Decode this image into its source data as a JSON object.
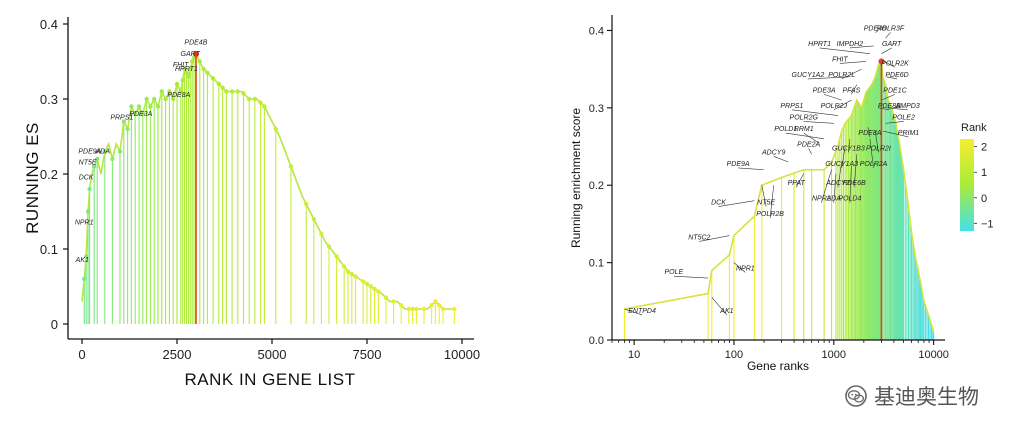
{
  "watermark": {
    "text": "基迪奥生物",
    "icon": "wechat-logo-icon"
  },
  "colors": {
    "low": "#44e0e8",
    "mid": "#a8ec3a",
    "high": "#f5ee2e",
    "highlight": "#e0441e"
  },
  "chart_data": [
    {
      "type": "line",
      "xlabel": "RANK IN GENE LIST",
      "ylabel": "RUNNING ES",
      "xlim": [
        0,
        10000
      ],
      "ylim": [
        -0.02,
        0.4
      ],
      "xticks": [
        "0",
        "2500",
        "5000",
        "7500",
        "10000"
      ],
      "yticks": [
        "0",
        "0.1",
        "0.2",
        "0.3",
        "0.4"
      ],
      "x": [
        0,
        60,
        110,
        160,
        200,
        260,
        320,
        400,
        500,
        600,
        700,
        800,
        900,
        1000,
        1100,
        1200,
        1300,
        1400,
        1500,
        1600,
        1700,
        1800,
        1900,
        2000,
        2100,
        2200,
        2300,
        2400,
        2500,
        2600,
        2700,
        2800,
        2900,
        3000,
        3200,
        3400,
        3600,
        3800,
        4000,
        4200,
        4400,
        4600,
        4800,
        5000,
        5200,
        5500,
        5800,
        6100,
        6400,
        6700,
        7000,
        7300,
        7600,
        7900,
        8100,
        8300,
        8500,
        8700,
        8900,
        9100,
        9300,
        9500,
        9800
      ],
      "y": [
        0.03,
        0.06,
        0.09,
        0.15,
        0.18,
        0.2,
        0.21,
        0.22,
        0.2,
        0.23,
        0.24,
        0.22,
        0.24,
        0.23,
        0.27,
        0.26,
        0.29,
        0.28,
        0.29,
        0.28,
        0.3,
        0.29,
        0.3,
        0.29,
        0.31,
        0.3,
        0.31,
        0.3,
        0.32,
        0.31,
        0.34,
        0.33,
        0.35,
        0.36,
        0.34,
        0.33,
        0.32,
        0.31,
        0.31,
        0.31,
        0.3,
        0.3,
        0.29,
        0.27,
        0.25,
        0.21,
        0.17,
        0.14,
        0.11,
        0.09,
        0.07,
        0.06,
        0.05,
        0.04,
        0.03,
        0.03,
        0.02,
        0.02,
        0.02,
        0.02,
        0.03,
        0.02,
        0.02
      ],
      "peak": {
        "x": 3000,
        "y": 0.36
      },
      "hit_x": [
        60,
        110,
        160,
        200,
        320,
        400,
        600,
        800,
        1000,
        1100,
        1200,
        1300,
        1400,
        1500,
        1600,
        1700,
        1800,
        1900,
        2000,
        2100,
        2200,
        2300,
        2400,
        2500,
        2600,
        2650,
        2700,
        2750,
        2800,
        2850,
        2900,
        2950,
        3000,
        3100,
        3200,
        3300,
        3450,
        3600,
        3700,
        3800,
        3950,
        4100,
        4250,
        4400,
        4550,
        4700,
        4800,
        5100,
        5500,
        5900,
        6100,
        6300,
        6500,
        6700,
        6900,
        7000,
        7100,
        7200,
        7400,
        7500,
        7600,
        7700,
        7800,
        8000,
        8200,
        8400,
        8600,
        8700,
        8800,
        9000,
        9200,
        9300,
        9400,
        9500,
        9800
      ],
      "labels": [
        {
          "text": "AK1",
          "x": 60,
          "y": 0.08
        },
        {
          "text": "NPR1",
          "x": 110,
          "y": 0.13
        },
        {
          "text": "DCK",
          "x": 160,
          "y": 0.19
        },
        {
          "text": "NT5E",
          "x": 200,
          "y": 0.21
        },
        {
          "text": "PDE9A",
          "x": 260,
          "y": 0.225
        },
        {
          "text": "ADA",
          "x": 600,
          "y": 0.225
        },
        {
          "text": "PRPS1",
          "x": 1100,
          "y": 0.27
        },
        {
          "text": "PDE3A",
          "x": 1600,
          "y": 0.275
        },
        {
          "text": "PDE8A",
          "x": 2600,
          "y": 0.3
        },
        {
          "text": "FHIT",
          "x": 2650,
          "y": 0.34
        },
        {
          "text": "HPRT1",
          "x": 2800,
          "y": 0.335
        },
        {
          "text": "GART",
          "x": 2900,
          "y": 0.355
        },
        {
          "text": "PDE4B",
          "x": 3050,
          "y": 0.37
        }
      ]
    },
    {
      "type": "line",
      "xlabel": "Gene ranks",
      "ylabel": "Running enrichment score",
      "xscale": "log",
      "xlim": [
        6,
        13000
      ],
      "ylim": [
        0,
        0.42
      ],
      "xticks": [
        "10",
        "100",
        "1000",
        "10000"
      ],
      "yticks": [
        "0.0",
        "0.1",
        "0.2",
        "0.3",
        "0.4"
      ],
      "legend": {
        "title": "Rank",
        "ticks": [
          "2",
          "1",
          "0",
          "−1"
        ],
        "values": [
          2,
          1,
          0,
          -1
        ],
        "range": [
          -1.3,
          2.3
        ],
        "placement": "right"
      },
      "x": [
        8,
        55,
        60,
        90,
        100,
        160,
        190,
        300,
        500,
        600,
        800,
        950,
        1100,
        1200,
        1300,
        1500,
        1700,
        1900,
        2100,
        2400,
        2600,
        2800,
        3000,
        3100,
        3300,
        3500,
        3800,
        4200,
        4600,
        5000,
        5500,
        6000,
        6500,
        7000,
        7500,
        8000,
        8500,
        9000,
        9500,
        10000
      ],
      "y": [
        0.04,
        0.06,
        0.09,
        0.11,
        0.135,
        0.16,
        0.2,
        0.21,
        0.22,
        0.22,
        0.22,
        0.23,
        0.25,
        0.27,
        0.28,
        0.29,
        0.31,
        0.3,
        0.32,
        0.33,
        0.34,
        0.355,
        0.36,
        0.34,
        0.33,
        0.31,
        0.3,
        0.28,
        0.25,
        0.22,
        0.18,
        0.14,
        0.11,
        0.09,
        0.07,
        0.05,
        0.04,
        0.03,
        0.02,
        0.01
      ],
      "peak": {
        "x": 3000,
        "y": 0.36
      },
      "hit_x": [
        8,
        55,
        60,
        90,
        100,
        160,
        190,
        300,
        400,
        500,
        600,
        800,
        950,
        1050,
        1100,
        1150,
        1200,
        1250,
        1300,
        1350,
        1400,
        1450,
        1500,
        1550,
        1600,
        1650,
        1700,
        1750,
        1800,
        1850,
        1900,
        1950,
        2000,
        2050,
        2100,
        2150,
        2200,
        2250,
        2300,
        2350,
        2400,
        2450,
        2500,
        2550,
        2600,
        2650,
        2700,
        2750,
        2800,
        2850,
        2900,
        2950,
        3000,
        3100,
        3200,
        3300,
        3400,
        3500,
        3600,
        3700,
        3800,
        3900,
        4000,
        4100,
        4200,
        4300,
        4400,
        4500,
        4600,
        4700,
        4800,
        4900,
        5000,
        5200,
        5400,
        5600,
        5800,
        6000,
        6200,
        6400,
        6600,
        6800,
        7000,
        7200,
        7400,
        7600,
        7800,
        8000,
        8300,
        8600,
        8900,
        9200,
        9500,
        9800,
        10000
      ],
      "labels": [
        {
          "text": "ENTPD4",
          "x": 8,
          "y": 0.04,
          "lx": 12,
          "ly": 0.035
        },
        {
          "text": "POLE",
          "x": 55,
          "y": 0.08,
          "lx": 25,
          "ly": 0.085
        },
        {
          "text": "AK1",
          "x": 60,
          "y": 0.055,
          "lx": 85,
          "ly": 0.035
        },
        {
          "text": "NT5C2",
          "x": 90,
          "y": 0.135,
          "lx": 45,
          "ly": 0.13
        },
        {
          "text": "NPR1",
          "x": 100,
          "y": 0.1,
          "lx": 130,
          "ly": 0.09
        },
        {
          "text": "DCK",
          "x": 160,
          "y": 0.18,
          "lx": 70,
          "ly": 0.175
        },
        {
          "text": "NT5E",
          "x": 190,
          "y": 0.2,
          "lx": 210,
          "ly": 0.175
        },
        {
          "text": "POLR2B",
          "x": 250,
          "y": 0.2,
          "lx": 230,
          "ly": 0.16
        },
        {
          "text": "PDE9A",
          "x": 200,
          "y": 0.22,
          "lx": 110,
          "ly": 0.225
        },
        {
          "text": "ADCY9",
          "x": 350,
          "y": 0.23,
          "lx": 250,
          "ly": 0.24
        },
        {
          "text": "PPAT",
          "x": 500,
          "y": 0.215,
          "lx": 420,
          "ly": 0.2
        },
        {
          "text": "PDE2A",
          "x": 600,
          "y": 0.24,
          "lx": 560,
          "ly": 0.25
        },
        {
          "text": "RRM1",
          "x": 700,
          "y": 0.255,
          "lx": 500,
          "ly": 0.27
        },
        {
          "text": "POLD1",
          "x": 800,
          "y": 0.26,
          "lx": 330,
          "ly": 0.27
        },
        {
          "text": "NPR2",
          "x": 950,
          "y": 0.22,
          "lx": 750,
          "ly": 0.18
        },
        {
          "text": "ADA",
          "x": 1050,
          "y": 0.215,
          "lx": 1000,
          "ly": 0.18
        },
        {
          "text": "ADCY2",
          "x": 1200,
          "y": 0.23,
          "lx": 1100,
          "ly": 0.2
        },
        {
          "text": "GUCY1A3",
          "x": 1300,
          "y": 0.25,
          "lx": 1200,
          "ly": 0.225
        },
        {
          "text": "POLD4",
          "x": 1500,
          "y": 0.225,
          "lx": 1450,
          "ly": 0.18
        },
        {
          "text": "PDE6B",
          "x": 1700,
          "y": 0.24,
          "lx": 1600,
          "ly": 0.2
        },
        {
          "text": "GUCY1B3",
          "x": 1450,
          "y": 0.26,
          "lx": 1400,
          "ly": 0.245
        },
        {
          "text": "POLR2G",
          "x": 1000,
          "y": 0.28,
          "lx": 500,
          "ly": 0.285
        },
        {
          "text": "PRPS1",
          "x": 1100,
          "y": 0.29,
          "lx": 380,
          "ly": 0.3
        },
        {
          "text": "PDE3A",
          "x": 1200,
          "y": 0.31,
          "lx": 800,
          "ly": 0.32
        },
        {
          "text": "POLR2J",
          "x": 1500,
          "y": 0.31,
          "lx": 1000,
          "ly": 0.3
        },
        {
          "text": "PFAS",
          "x": 1700,
          "y": 0.33,
          "lx": 1500,
          "ly": 0.32
        },
        {
          "text": "GUCY1A2",
          "x": 1400,
          "y": 0.34,
          "lx": 550,
          "ly": 0.34
        },
        {
          "text": "POLR2L",
          "x": 1900,
          "y": 0.35,
          "lx": 1200,
          "ly": 0.34
        },
        {
          "text": "FHIT",
          "x": 2100,
          "y": 0.36,
          "lx": 1150,
          "ly": 0.36
        },
        {
          "text": "HPRT1",
          "x": 2300,
          "y": 0.37,
          "lx": 720,
          "ly": 0.38
        },
        {
          "text": "IMPDH2",
          "x": 2500,
          "y": 0.38,
          "lx": 1450,
          "ly": 0.38
        },
        {
          "text": "PDE4B",
          "x": 2800,
          "y": 0.4,
          "lx": 2600,
          "ly": 0.4
        },
        {
          "text": "POLR3F",
          "x": 3300,
          "y": 0.39,
          "lx": 3700,
          "ly": 0.4
        },
        {
          "text": "GART",
          "x": 3000,
          "y": 0.37,
          "lx": 3800,
          "ly": 0.38
        },
        {
          "text": "POLR2K",
          "x": 3200,
          "y": 0.36,
          "lx": 4100,
          "ly": 0.355
        },
        {
          "text": "PDE6D",
          "x": 3400,
          "y": 0.34,
          "lx": 4300,
          "ly": 0.34
        },
        {
          "text": "PDE1C",
          "x": 3000,
          "y": 0.31,
          "lx": 4100,
          "ly": 0.32
        },
        {
          "text": "PDE8B",
          "x": 2800,
          "y": 0.3,
          "lx": 3600,
          "ly": 0.3
        },
        {
          "text": "AMPD3",
          "x": 3400,
          "y": 0.3,
          "lx": 5500,
          "ly": 0.3
        },
        {
          "text": "POLE2",
          "x": 3300,
          "y": 0.28,
          "lx": 5000,
          "ly": 0.285
        },
        {
          "text": "PRIM1",
          "x": 3100,
          "y": 0.27,
          "lx": 5600,
          "ly": 0.265
        },
        {
          "text": "PDE8A",
          "x": 2200,
          "y": 0.275,
          "lx": 2300,
          "ly": 0.265
        },
        {
          "text": "POLR2I",
          "x": 2600,
          "y": 0.27,
          "lx": 2800,
          "ly": 0.245
        },
        {
          "text": "POLR2A",
          "x": 2300,
          "y": 0.26,
          "lx": 2500,
          "ly": 0.225
        }
      ]
    }
  ]
}
